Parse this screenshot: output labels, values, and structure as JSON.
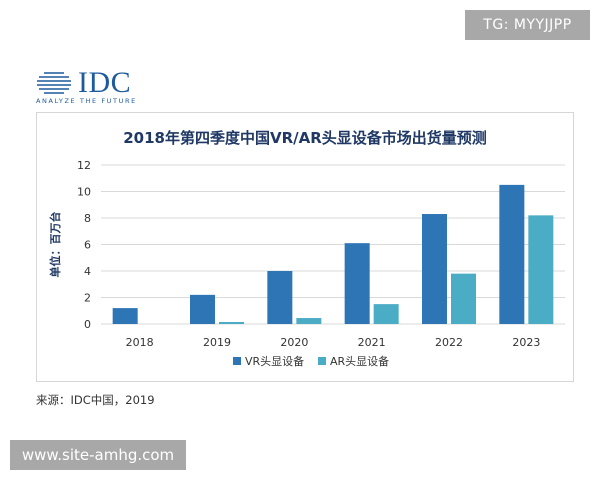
{
  "watermark_top": "TG: MYYJJPP",
  "watermark_bottom": "www.site-amhg.com",
  "logo": {
    "name": "IDC",
    "tagline": "ANALYZE THE FUTURE"
  },
  "source": "来源：IDC中国，2019",
  "colors": {
    "vr": "#2e75b6",
    "ar": "#4bacc6",
    "title": "#1f3864",
    "grid": "#d9d9d9"
  },
  "chart_data": {
    "type": "bar",
    "title": "2018年第四季度中国VR/AR头显设备市场出货量预测",
    "ylabel": "单位：百万台",
    "xlabel": "",
    "categories": [
      "2018",
      "2019",
      "2020",
      "2021",
      "2022",
      "2023"
    ],
    "series": [
      {
        "name": "VR头显设备",
        "values": [
          1.2,
          2.2,
          4.0,
          6.1,
          8.3,
          10.5
        ]
      },
      {
        "name": "AR头显设备",
        "values": [
          0.0,
          0.15,
          0.45,
          1.5,
          3.8,
          8.2
        ]
      }
    ],
    "ylim": [
      0,
      12
    ],
    "yticks": [
      0,
      2,
      4,
      6,
      8,
      10,
      12
    ],
    "grid": true,
    "legend_position": "bottom-center"
  }
}
